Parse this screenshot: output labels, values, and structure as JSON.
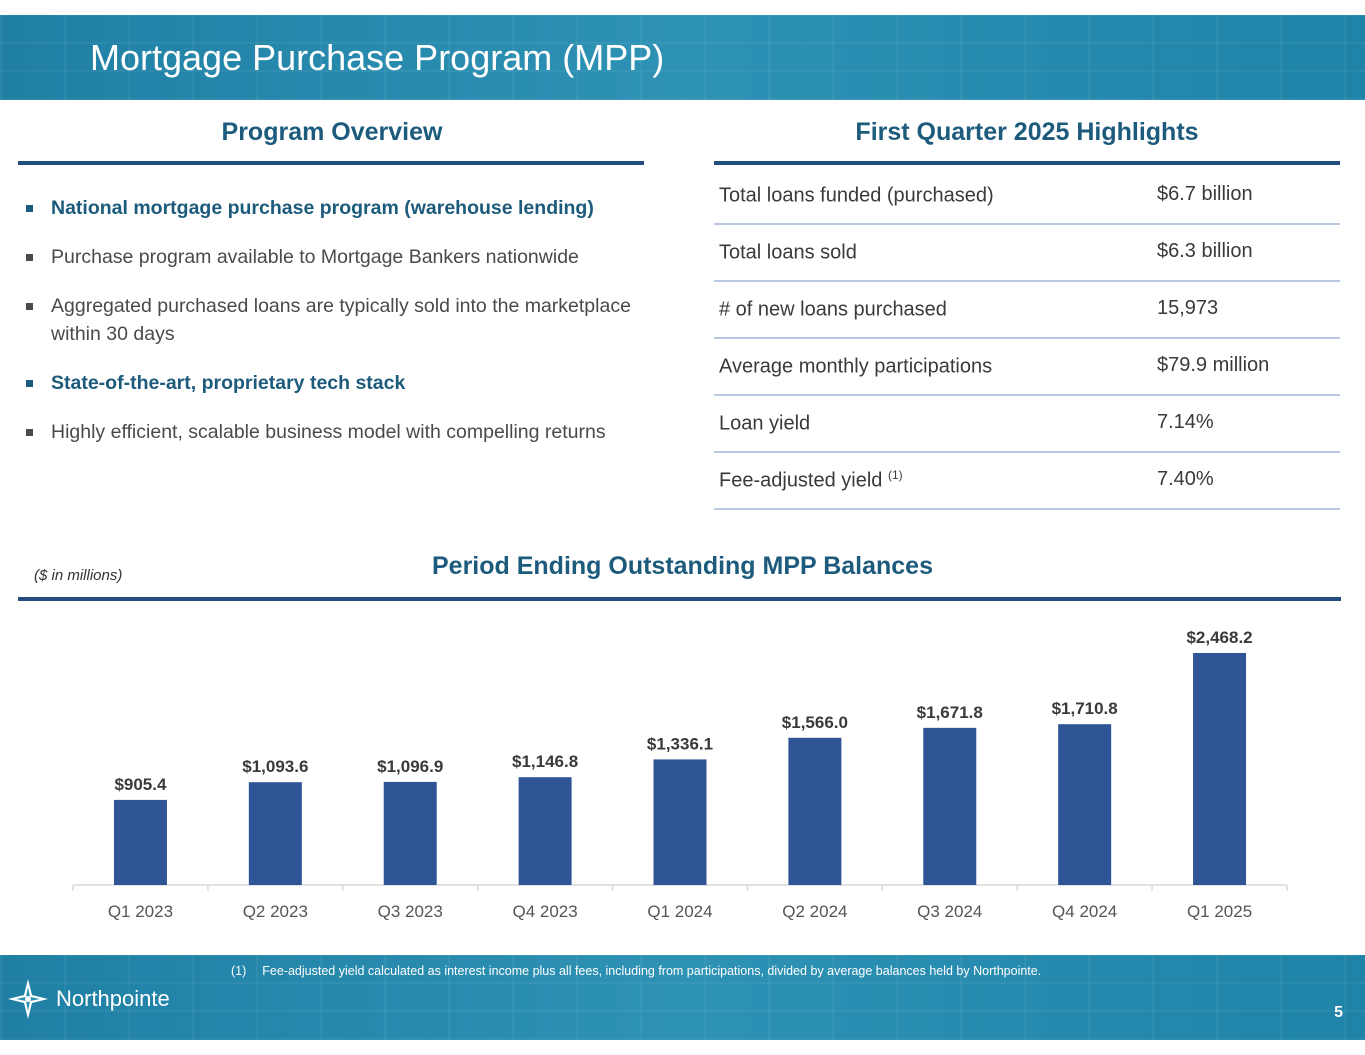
{
  "title": "Mortgage Purchase Program (MPP)",
  "overview": {
    "title": "Program Overview",
    "bullets": [
      {
        "text": "National mortgage purchase program (warehouse lending)",
        "emphasis": true
      },
      {
        "text": "Purchase program available to Mortgage Bankers nationwide",
        "emphasis": false
      },
      {
        "text": "Aggregated purchased loans are typically sold into the marketplace within 30 days",
        "emphasis": false
      },
      {
        "text": "State-of-the-art, proprietary tech stack",
        "emphasis": true
      },
      {
        "text": "Highly efficient, scalable business model with compelling returns",
        "emphasis": false
      }
    ]
  },
  "highlights": {
    "title": "First Quarter 2025 Highlights",
    "rows": [
      {
        "label": "Total loans funded (purchased)",
        "note": "",
        "value": "$6.7 billion"
      },
      {
        "label": "Total loans sold",
        "note": "",
        "value": "$6.3 billion"
      },
      {
        "label": "# of new loans purchased",
        "note": "",
        "value": "15,973"
      },
      {
        "label": "Average monthly participations",
        "note": "",
        "value": "$79.9 million"
      },
      {
        "label": "Loan yield",
        "note": "",
        "value": "7.14%"
      },
      {
        "label": "Fee-adjusted yield",
        "note": "(1)",
        "value": "7.40%"
      }
    ]
  },
  "chart_section": {
    "title": "Period Ending Outstanding MPP Balances",
    "units_note": "($ in millions)"
  },
  "chart_data": {
    "type": "bar",
    "title": "Period Ending Outstanding MPP Balances",
    "categories": [
      "Q1 2023",
      "Q2 2023",
      "Q3 2023",
      "Q4 2023",
      "Q1 2024",
      "Q2 2024",
      "Q3 2024",
      "Q4 2024",
      "Q1 2025"
    ],
    "values": [
      905.4,
      1093.6,
      1096.9,
      1146.8,
      1336.1,
      1566.0,
      1671.8,
      1710.8,
      2468.2
    ],
    "value_labels": [
      "$905.4",
      "$1,093.6",
      "$1,096.9",
      "$1,146.8",
      "$1,336.1",
      "$1,566.0",
      "$1,671.8",
      "$1,710.8",
      "$2,468.2"
    ],
    "xlabel": "",
    "ylabel": "($ in millions)",
    "ylim": [
      0,
      2500
    ],
    "grid": false,
    "color": "#2f5597"
  },
  "footer": {
    "footnote_num": "(1)",
    "footnote": "Fee-adjusted yield calculated as interest income plus all fees, including from participations, divided by average balances held by Northpointe.",
    "logo_text": "Northpointe",
    "page_number": "5"
  },
  "colors": {
    "banner": "#2b8db0",
    "heading": "#1d5b7c",
    "rule": "#244d80",
    "bar": "#2f5597"
  }
}
